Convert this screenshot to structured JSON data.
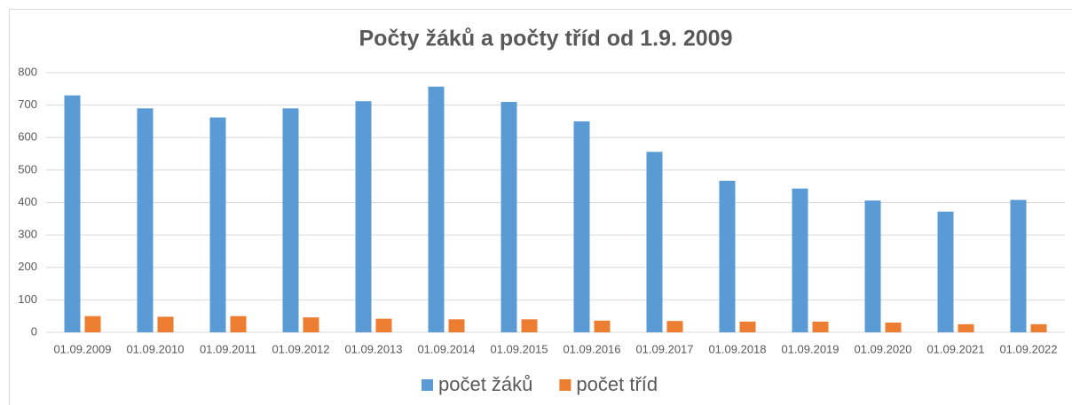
{
  "chart_data": {
    "type": "bar",
    "title": "Počty žáků a počty tříd od 1.9. 2009",
    "categories": [
      "01.09.2009",
      "01.09.2010",
      "01.09.2011",
      "01.09.2012",
      "01.09.2013",
      "01.09.2014",
      "01.09.2015",
      "01.09.2016",
      "01.09.2017",
      "01.09.2018",
      "01.09.2019",
      "01.09.2020",
      "01.09.2021",
      "01.09.2022"
    ],
    "series": [
      {
        "name": "počet žáků",
        "color": "#5b9bd5",
        "values": [
          730,
          690,
          662,
          690,
          712,
          757,
          710,
          650,
          556,
          467,
          443,
          406,
          372,
          408
        ]
      },
      {
        "name": "počet tříd",
        "color": "#ed7d31",
        "values": [
          50,
          48,
          50,
          46,
          42,
          40,
          40,
          36,
          35,
          33,
          33,
          30,
          25,
          25
        ]
      }
    ],
    "ylim": [
      0,
      800
    ],
    "yticks": [
      0,
      100,
      200,
      300,
      400,
      500,
      600,
      700,
      800
    ],
    "grid": true,
    "legend": "bottom"
  }
}
